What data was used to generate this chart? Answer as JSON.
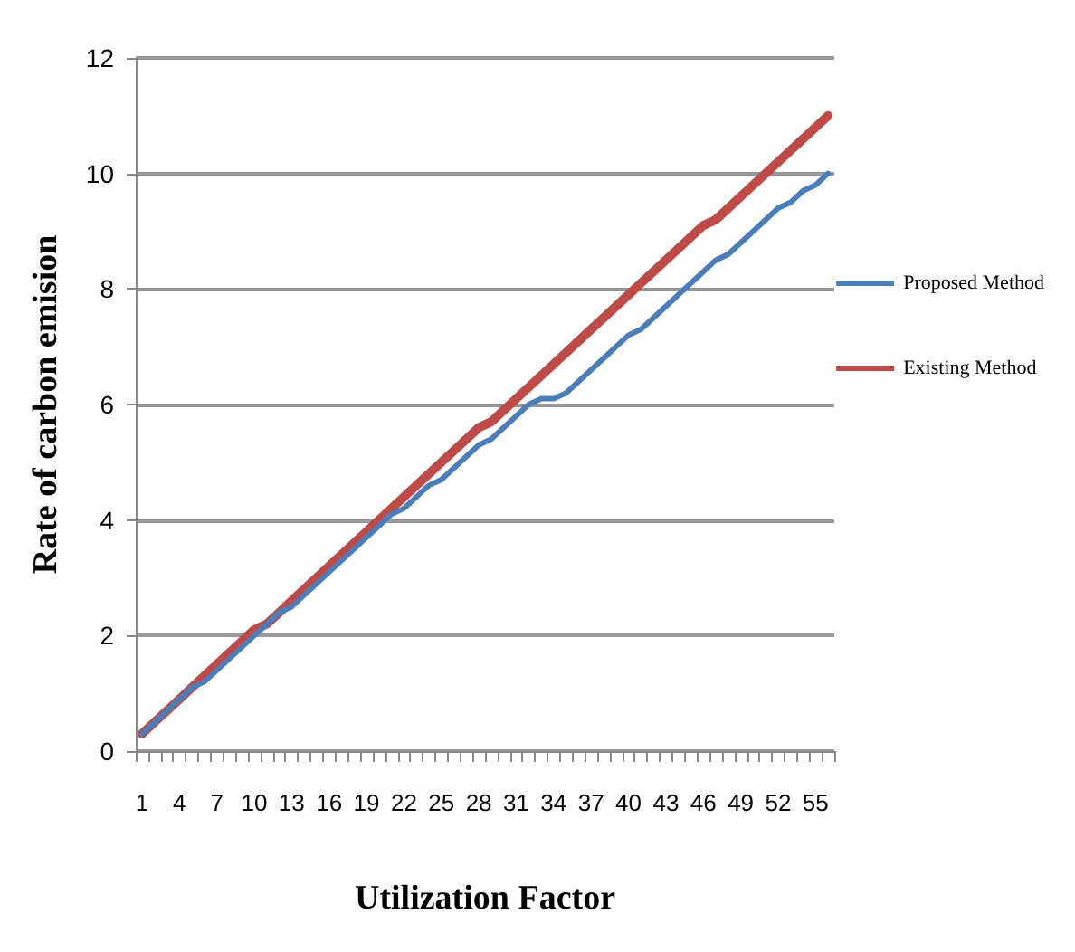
{
  "chart_data": {
    "type": "line",
    "xlabel": "Utilization Factor",
    "ylabel": "Rate of carbon emision",
    "categories": [
      "1",
      null,
      null,
      "4",
      null,
      null,
      "7",
      null,
      null,
      "10",
      null,
      null,
      "13",
      null,
      null,
      "16",
      null,
      null,
      "19",
      null,
      null,
      "22",
      null,
      null,
      "25",
      null,
      null,
      "28",
      null,
      null,
      "31",
      null,
      null,
      "34",
      null,
      null,
      "37",
      null,
      null,
      "40",
      null,
      null,
      "43",
      null,
      null,
      "46",
      null,
      null,
      "49",
      null,
      null,
      "52",
      null,
      null,
      "55",
      null
    ],
    "series": [
      {
        "name": "Proposed Method",
        "color": "#4a7ebb",
        "values": [
          0.3,
          0.5,
          0.7,
          0.9,
          1.1,
          1.2,
          1.4,
          1.6,
          1.8,
          2.0,
          2.2,
          2.4,
          2.5,
          2.7,
          2.9,
          3.1,
          3.3,
          3.5,
          3.7,
          3.9,
          4.1,
          4.2,
          4.4,
          4.6,
          4.7,
          4.9,
          5.1,
          5.3,
          5.4,
          5.6,
          5.8,
          6.0,
          6.1,
          6.1,
          6.2,
          6.4,
          6.6,
          6.8,
          7.0,
          7.2,
          7.3,
          7.5,
          7.7,
          7.9,
          8.1,
          8.3,
          8.5,
          8.6,
          8.8,
          9.0,
          9.2,
          9.4,
          9.5,
          9.7,
          9.8,
          10.0
        ]
      },
      {
        "name": "Existing Method",
        "color": "#be4b48",
        "values": [
          0.3,
          0.5,
          0.7,
          0.9,
          1.1,
          1.3,
          1.5,
          1.7,
          1.9,
          2.1,
          2.2,
          2.4,
          2.6,
          2.8,
          3.0,
          3.2,
          3.4,
          3.6,
          3.8,
          4.0,
          4.2,
          4.4,
          4.6,
          4.8,
          5.0,
          5.2,
          5.4,
          5.6,
          5.7,
          5.9,
          6.1,
          6.3,
          6.5,
          6.7,
          6.9,
          7.1,
          7.3,
          7.5,
          7.7,
          7.9,
          8.1,
          8.3,
          8.5,
          8.7,
          8.9,
          9.1,
          9.2,
          9.4,
          9.6,
          9.8,
          10.0,
          10.2,
          10.4,
          10.6,
          10.8,
          11.0
        ]
      }
    ],
    "ylim": [
      0,
      12
    ],
    "yticks": [
      0,
      2,
      4,
      6,
      8,
      10,
      12
    ],
    "grid": "y",
    "legend": "right",
    "marker": "none",
    "line_style": "solid"
  }
}
